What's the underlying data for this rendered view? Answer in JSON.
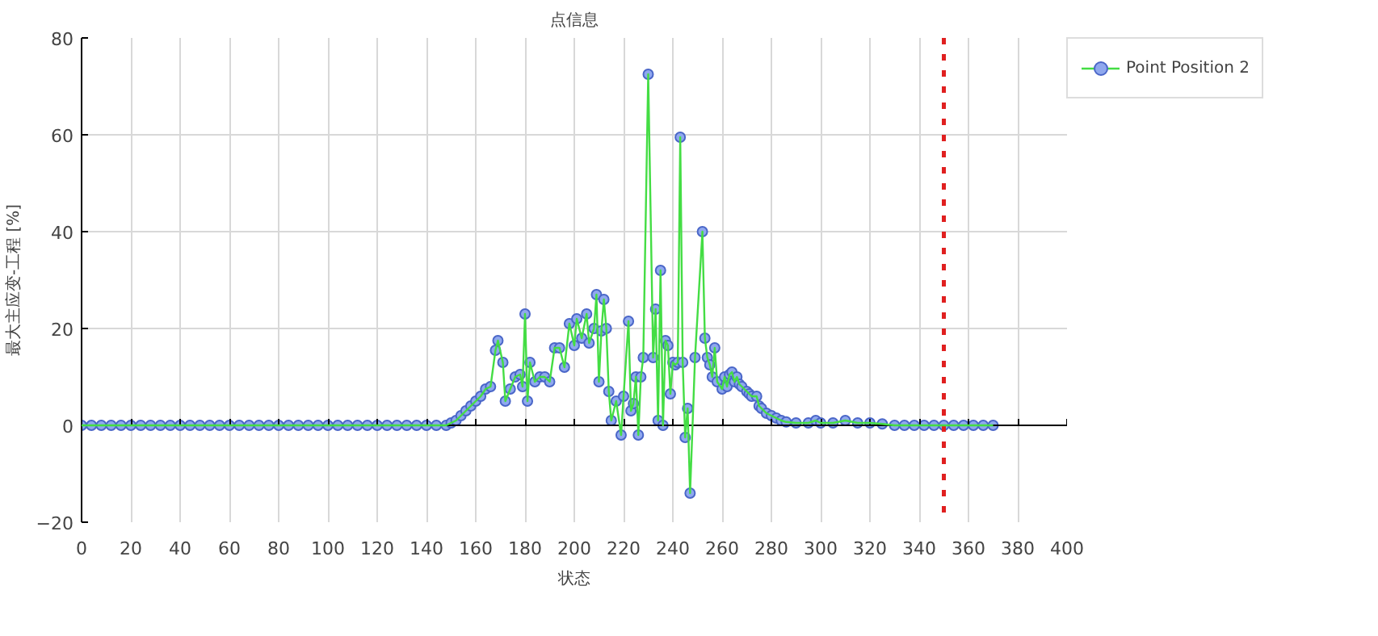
{
  "chart_data": {
    "type": "line",
    "title": "点信息",
    "xlabel": "状态",
    "ylabel": "最大主应变-工程 [%]",
    "xlim": [
      0,
      400
    ],
    "ylim": [
      -20,
      80
    ],
    "xticks": [
      0,
      20,
      40,
      60,
      80,
      100,
      120,
      140,
      160,
      180,
      200,
      220,
      240,
      260,
      280,
      300,
      320,
      340,
      360,
      380,
      400
    ],
    "yticks": [
      -20,
      0,
      20,
      40,
      60,
      80
    ],
    "grid": true,
    "legend": "top right",
    "marker": "circle",
    "line_style": "solid",
    "ref_lines": [
      {
        "axis": "x",
        "value": 350,
        "color": "#e02020",
        "line_style": "dotted"
      }
    ],
    "series": [
      {
        "name": "Point Position 2",
        "color": "#44dd44",
        "x": [
          0,
          4,
          8,
          12,
          16,
          20,
          24,
          28,
          32,
          36,
          40,
          44,
          48,
          52,
          56,
          60,
          64,
          68,
          72,
          76,
          80,
          84,
          88,
          92,
          96,
          100,
          104,
          108,
          112,
          116,
          120,
          124,
          128,
          132,
          136,
          140,
          144,
          148,
          150,
          152,
          154,
          156,
          158,
          160,
          162,
          164,
          166,
          168,
          169,
          171,
          172,
          174,
          176,
          178,
          179,
          180,
          181,
          182,
          184,
          186,
          188,
          190,
          192,
          194,
          196,
          198,
          200,
          201,
          203,
          205,
          206,
          208,
          209,
          210,
          211,
          212,
          213,
          214,
          215,
          217,
          219,
          220,
          222,
          223,
          224,
          225,
          226,
          227,
          228,
          230,
          232,
          233,
          234,
          235,
          236,
          237,
          238,
          239,
          240,
          241,
          242,
          243,
          244,
          245,
          246,
          247,
          249,
          252,
          253,
          254,
          255,
          256,
          257,
          258,
          260,
          261,
          262,
          263,
          264,
          265,
          266,
          267,
          268,
          270,
          271,
          272,
          274,
          275,
          276,
          278,
          280,
          282,
          284,
          286,
          290,
          295,
          298,
          300,
          305,
          310,
          315,
          320,
          325,
          330,
          334,
          338,
          342,
          346,
          350,
          354,
          358,
          362,
          366,
          370
        ],
        "values": [
          0,
          0,
          0,
          0,
          0,
          0,
          0,
          0,
          0,
          0,
          0,
          0,
          0,
          0,
          0,
          0,
          0,
          0,
          0,
          0,
          0,
          0,
          0,
          0,
          0,
          0,
          0,
          0,
          0,
          0,
          0,
          0,
          0,
          0,
          0,
          0,
          0,
          0,
          0.5,
          1,
          2,
          3,
          4,
          5,
          6,
          7.5,
          8,
          15.5,
          17.5,
          13,
          5,
          7.5,
          10,
          10.5,
          8,
          23,
          5,
          13,
          9,
          10,
          10,
          9,
          16,
          16,
          12,
          21,
          16.5,
          22,
          18,
          23,
          17,
          20,
          27,
          9,
          19.5,
          26,
          20,
          7,
          1,
          5,
          -2,
          6,
          21.5,
          3,
          4.5,
          10,
          -2,
          10,
          14,
          72.5,
          14,
          24,
          1,
          32,
          0,
          17.5,
          16.5,
          6.5,
          13,
          12.5,
          13,
          59.5,
          13,
          -2.5,
          3.5,
          -14,
          14,
          40,
          18,
          14,
          12.5,
          10,
          16,
          9,
          7.5,
          10,
          8,
          10.5,
          11,
          9,
          10,
          8.5,
          8,
          7,
          6.5,
          6,
          6,
          4,
          3.5,
          2.5,
          2,
          1.5,
          1,
          0.7,
          0.5,
          0.5,
          1,
          0.5,
          0.5,
          1,
          0.5,
          0.5,
          0.3,
          0,
          0,
          0,
          0,
          0,
          0,
          0,
          0,
          0,
          0,
          0
        ]
      }
    ]
  }
}
